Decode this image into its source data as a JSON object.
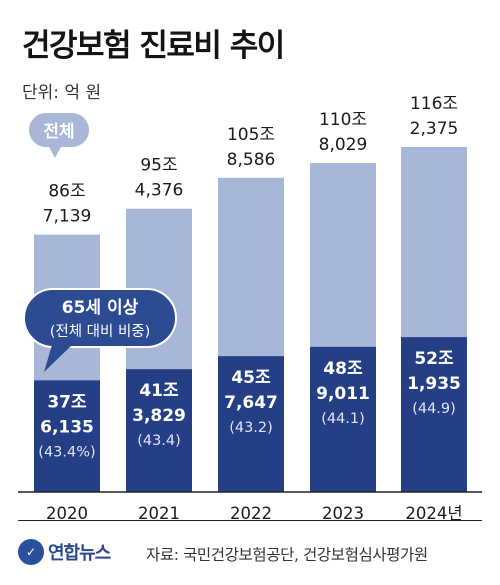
{
  "title": "건강보험 진료비 추이",
  "unit": "단위: 억 원",
  "source": "자료: 국민건강보험공단, 건강보험심사평가원",
  "logo": {
    "text": "연합뉴스",
    "icon": "yonhap-logo-icon"
  },
  "colors": {
    "total": "#a8b6d8",
    "senior": "#243f86",
    "axis": "#222222"
  },
  "legend": {
    "total_label": "전체",
    "senior_label": "65세 이상",
    "senior_sub": "(전체 대비 비중)"
  },
  "chart_data": {
    "type": "bar",
    "stacked": "overlay",
    "categories": [
      "2020",
      "2021",
      "2022",
      "2023",
      "2024년"
    ],
    "series": [
      {
        "name": "전체",
        "values": [
          867139,
          954376,
          1058586,
          1108029,
          1162375
        ],
        "labels": [
          [
            "86조",
            "7,139"
          ],
          [
            "95조",
            "4,376"
          ],
          [
            "105조",
            "8,586"
          ],
          [
            "110조",
            "8,029"
          ],
          [
            "116조",
            "2,375"
          ]
        ]
      },
      {
        "name": "65세 이상",
        "values": [
          376135,
          413829,
          457647,
          489011,
          521935
        ],
        "labels": [
          [
            "37조",
            "6,135"
          ],
          [
            "41조",
            "3,829"
          ],
          [
            "45조",
            "7,647"
          ],
          [
            "48조",
            "9,011"
          ],
          [
            "52조",
            "1,935"
          ]
        ],
        "shares": [
          "(43.4%)",
          "(43.4)",
          "(43.2)",
          "(44.1)",
          "(44.9)"
        ]
      }
    ],
    "ylim": [
      0,
      1162375
    ],
    "legend_position": "inline-bubbles",
    "grid": false
  }
}
